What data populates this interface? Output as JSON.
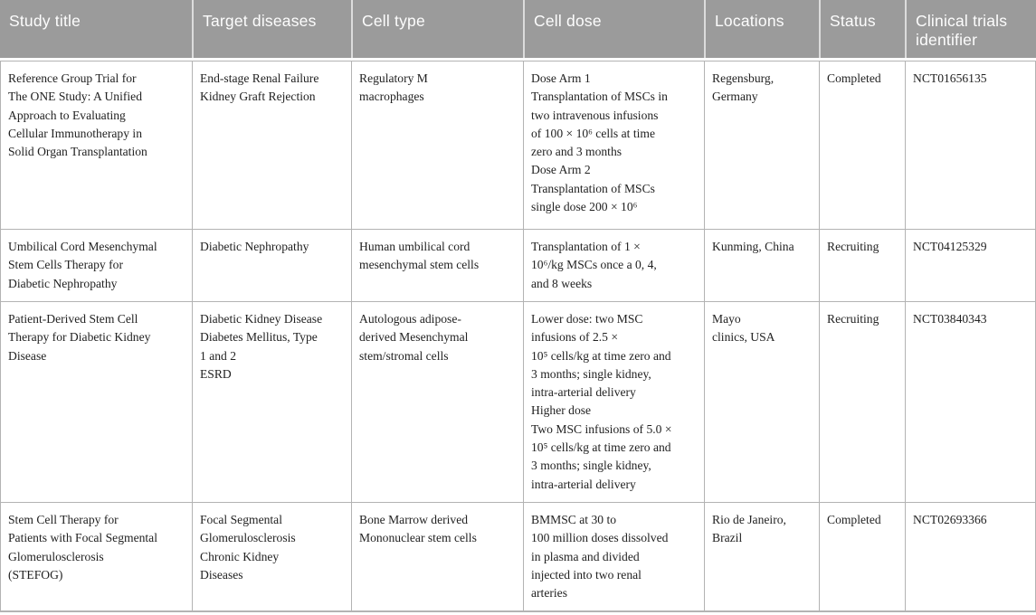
{
  "colors": {
    "header_bg": "#9b9b9b",
    "header_text": "#fdfdfd",
    "header_divider": "#dcdcdc",
    "body_border": "#b3b3b3",
    "body_text": "#222222",
    "page_bg": "#ffffff"
  },
  "header": {
    "columns": [
      "Study title",
      "Target diseases",
      "Cell type",
      "Cell dose",
      "Locations",
      "Status",
      "Clinical trials identifier"
    ]
  },
  "rows": [
    {
      "study_title": "Reference Group Trial for\nThe ONE Study: A Unified\nApproach to Evaluating\nCellular Immunotherapy in\nSolid Organ Transplantation",
      "target_diseases": "End-stage Renal Failure\nKidney Graft Rejection",
      "cell_type": "Regulatory M\nmacrophages",
      "cell_dose": "Dose Arm 1\nTransplantation of MSCs in\ntwo intravenous infusions\nof 100 × 10⁶ cells at time\nzero and 3 months\nDose Arm 2\nTransplantation of MSCs\nsingle dose 200 × 10⁶",
      "locations": "Regensburg,\nGermany",
      "status": "Completed",
      "identifier": "NCT01656135"
    },
    {
      "study_title": "Umbilical Cord Mesenchymal\nStem Cells Therapy for\nDiabetic Nephropathy",
      "target_diseases": "Diabetic Nephropathy",
      "cell_type": "Human umbilical cord\nmesenchymal stem cells",
      "cell_dose": "Transplantation of 1 ×\n10⁶/kg MSCs once a 0, 4,\nand 8 weeks",
      "locations": "Kunming, China",
      "status": "Recruiting",
      "identifier": "NCT04125329"
    },
    {
      "study_title": "Patient-Derived Stem Cell\nTherapy for Diabetic Kidney\nDisease",
      "target_diseases": "Diabetic Kidney Disease\nDiabetes Mellitus, Type\n1 and 2\nESRD",
      "cell_type": "Autologous adipose-\nderived Mesenchymal\nstem/stromal cells",
      "cell_dose": "Lower dose: two MSC\ninfusions of 2.5 ×\n10⁵ cells/kg at time zero and\n3 months; single kidney,\nintra-arterial delivery\nHigher dose\nTwo MSC infusions of 5.0 ×\n10⁵ cells/kg at time zero and\n3 months; single kidney,\nintra-arterial delivery",
      "locations": "Mayo\nclinics, USA",
      "status": "Recruiting",
      "identifier": "NCT03840343"
    },
    {
      "study_title": "Stem Cell Therapy for\nPatients with Focal Segmental\nGlomerulosclerosis\n(STEFOG)",
      "target_diseases": "Focal Segmental\nGlomerulosclerosis\nChronic Kidney\nDiseases",
      "cell_type": "Bone Marrow derived\nMononuclear stem cells",
      "cell_dose": "BMMSC at 30 to\n100 million doses dissolved\nin plasma and divided\ninjected into two renal\narteries",
      "locations": "Rio de Janeiro,\nBrazil",
      "status": "Completed",
      "identifier": "NCT02693366"
    }
  ]
}
